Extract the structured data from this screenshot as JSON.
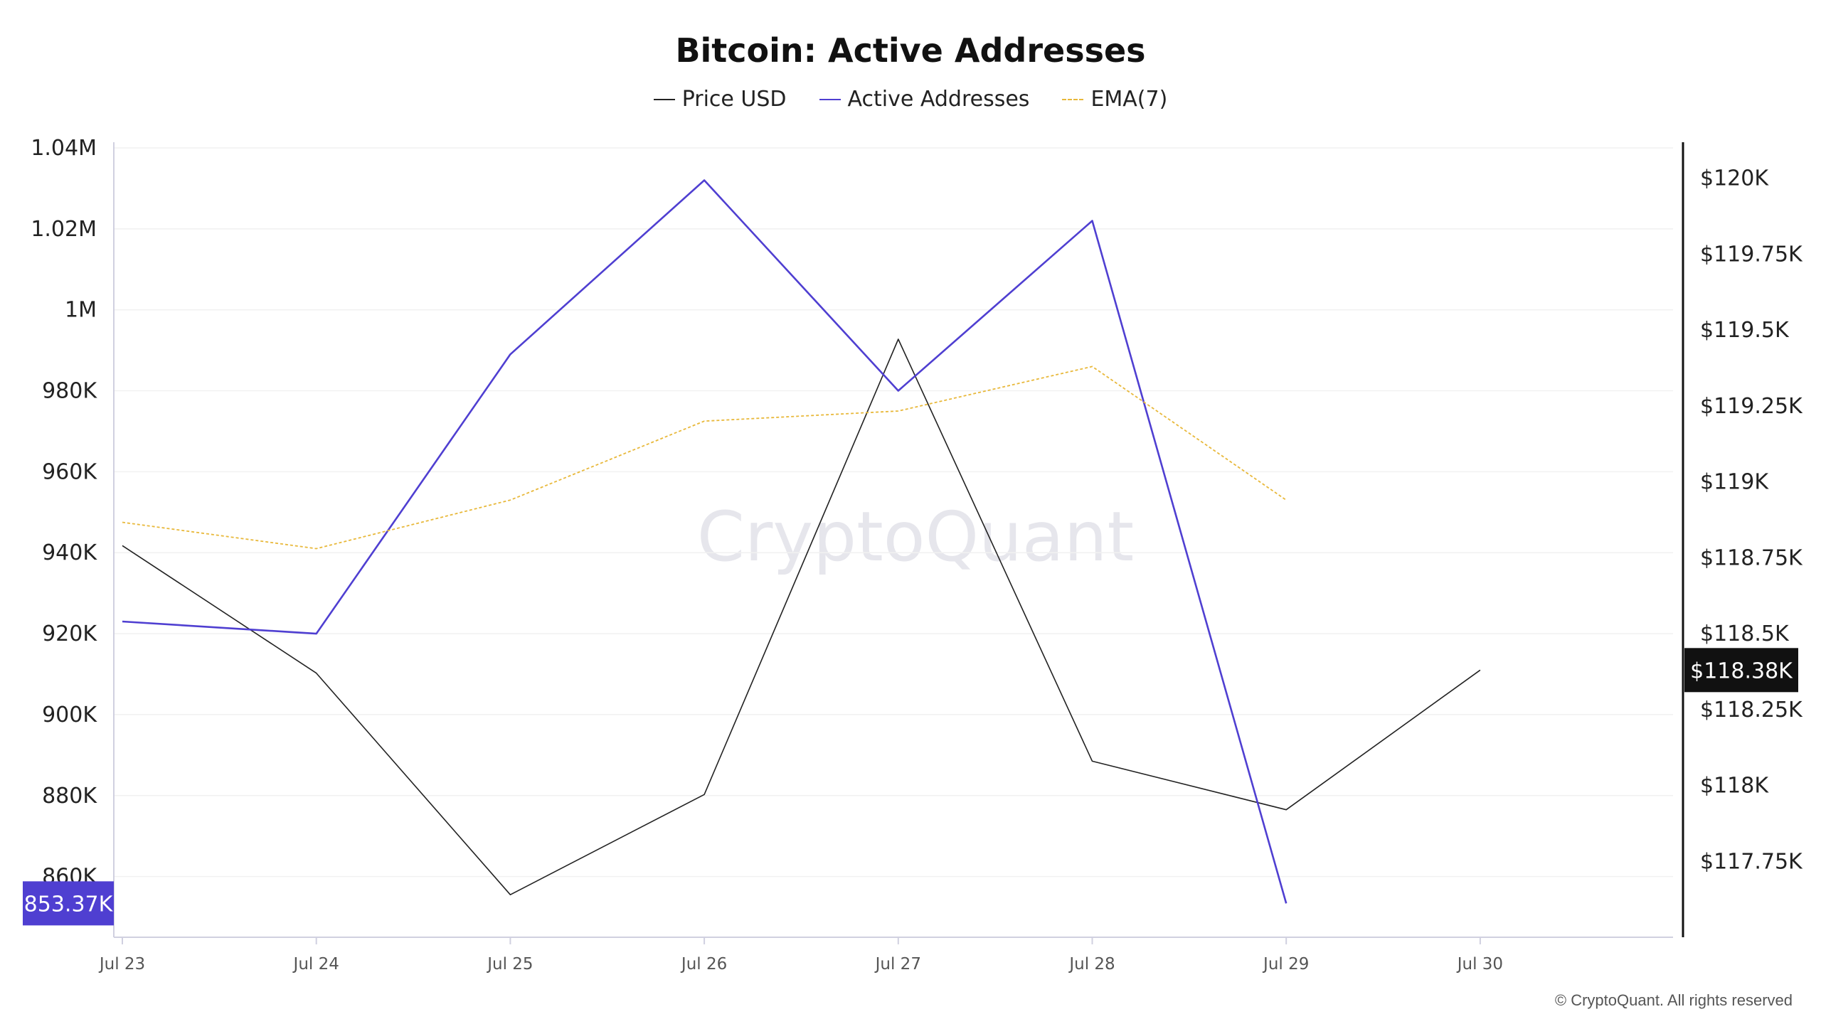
{
  "chart_data": {
    "type": "line",
    "title": "Bitcoin: Active Addresses",
    "categories": [
      "Jul 23",
      "Jul 24",
      "Jul 25",
      "Jul 26",
      "Jul 27",
      "Jul 28",
      "Jul 29",
      "Jul 30"
    ],
    "series": [
      {
        "name": "Price USD",
        "axis": "right",
        "color": "#222222",
        "style": "solid",
        "values": [
          118.79,
          118.37,
          117.64,
          117.97,
          119.47,
          118.08,
          117.92,
          118.38
        ]
      },
      {
        "name": "Active Addresses",
        "axis": "left",
        "color": "#4f3fd1",
        "style": "solid",
        "values": [
          923000,
          920000,
          989000,
          1032000,
          980000,
          1022000,
          853370,
          null
        ]
      },
      {
        "name": "EMA(7)",
        "axis": "left",
        "color": "#e8b83a",
        "style": "dashed",
        "values": [
          947500,
          941000,
          953000,
          972500,
          975000,
          986000,
          953000,
          null
        ]
      }
    ],
    "left_axis": {
      "ylim": [
        845000,
        1040000
      ],
      "ticks": [
        860000,
        880000,
        900000,
        920000,
        940000,
        960000,
        980000,
        1000000,
        1020000,
        1040000
      ],
      "tick_labels": [
        "860K",
        "880K",
        "900K",
        "920K",
        "940K",
        "960K",
        "980K",
        "1M",
        "1.02M",
        "1.04M"
      ]
    },
    "right_axis": {
      "unit": "thousand USD",
      "ylim": [
        117.5,
        120.1
      ],
      "ticks": [
        117.75,
        118.0,
        118.25,
        118.5,
        118.75,
        119.0,
        119.25,
        119.5,
        119.75,
        120.0
      ],
      "tick_labels": [
        "$117.75K",
        "$118K",
        "$118.25K",
        "$118.5K",
        "$118.75K",
        "$119K",
        "$119.25K",
        "$119.5K",
        "$119.75K",
        "$120K"
      ]
    },
    "badges": {
      "left": {
        "value": 853370,
        "label": "853.37K",
        "color": "#4f3fd1"
      },
      "right": {
        "value": 118.38,
        "label": "$118.38K",
        "color": "#111111"
      }
    },
    "grid": true,
    "legend_position": "top-center"
  },
  "watermark": "CryptoQuant",
  "copyright": "© CryptoQuant. All rights reserved"
}
